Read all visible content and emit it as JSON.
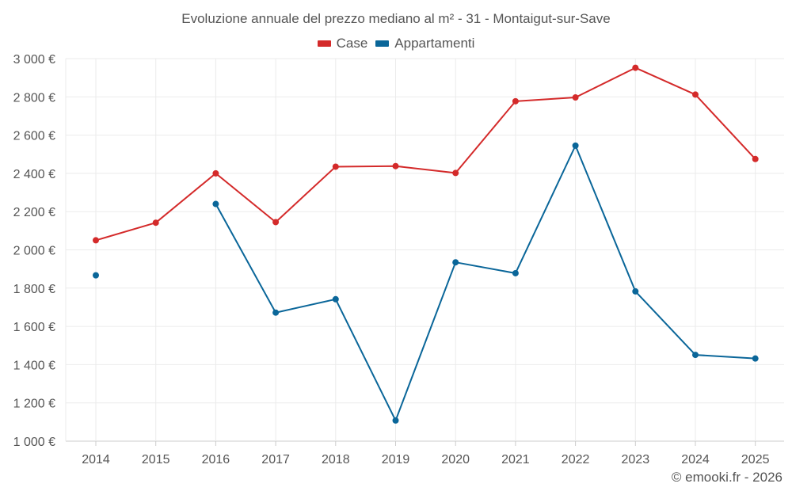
{
  "chart_data": {
    "type": "line",
    "title": "Evoluzione annuale del prezzo mediano al m² - 31 - Montaigut-sur-Save",
    "xlabel": "",
    "ylabel": "",
    "categories": [
      "2014",
      "2015",
      "2016",
      "2017",
      "2018",
      "2019",
      "2020",
      "2021",
      "2022",
      "2023",
      "2024",
      "2025"
    ],
    "ylim": [
      1000,
      3000
    ],
    "yticks": [
      1000,
      1200,
      1400,
      1600,
      1800,
      2000,
      2200,
      2400,
      2600,
      2800,
      3000
    ],
    "ytick_labels": [
      "1 000 €",
      "1 200 €",
      "1 400 €",
      "1 600 €",
      "1 800 €",
      "2 000 €",
      "2 200 €",
      "2 400 €",
      "2 600 €",
      "2 800 €",
      "3 000 €"
    ],
    "grid": true,
    "legend_position": "top-center",
    "series": [
      {
        "name": "Case",
        "color": "#d42a2a",
        "values": [
          2050,
          2142,
          2400,
          2145,
          2435,
          2438,
          2402,
          2777,
          2797,
          2952,
          2812,
          2475
        ]
      },
      {
        "name": "Appartamenti",
        "color": "#0a6699",
        "values": [
          1867,
          null,
          2240,
          1672,
          1742,
          1108,
          1935,
          1878,
          2545,
          1783,
          1451,
          1432
        ]
      }
    ]
  },
  "credit": "© emooki.fr - 2026"
}
